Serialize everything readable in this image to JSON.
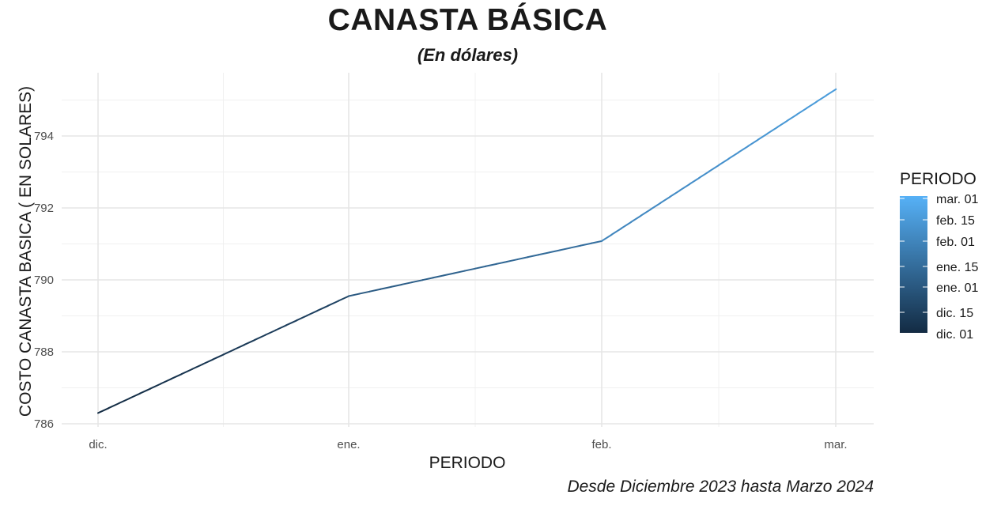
{
  "chart_data": {
    "type": "line",
    "title": "CANASTA BÁSICA",
    "subtitle": "(En dólares)",
    "caption": "Desde Diciembre 2023 hasta Marzo 2024",
    "xlabel": "PERIODO",
    "ylabel": "COSTO CANASTA BASICA ( EN SOLARES)",
    "x": [
      "dic.",
      "ene.",
      "feb.",
      "mar."
    ],
    "values": [
      786.3,
      789.55,
      791.08,
      795.3
    ],
    "ylim": [
      786,
      796
    ],
    "yticks": [
      786,
      788,
      790,
      792,
      794
    ],
    "grid": true,
    "legend": {
      "title": "PERIODO",
      "position": "right",
      "labels": [
        "mar. 01",
        "feb. 15",
        "feb. 01",
        "ene. 15",
        "ene. 01",
        "dic. 15",
        "dic. 01"
      ],
      "gradient_colors": [
        "#56B1F7",
        "#132B43"
      ]
    }
  }
}
